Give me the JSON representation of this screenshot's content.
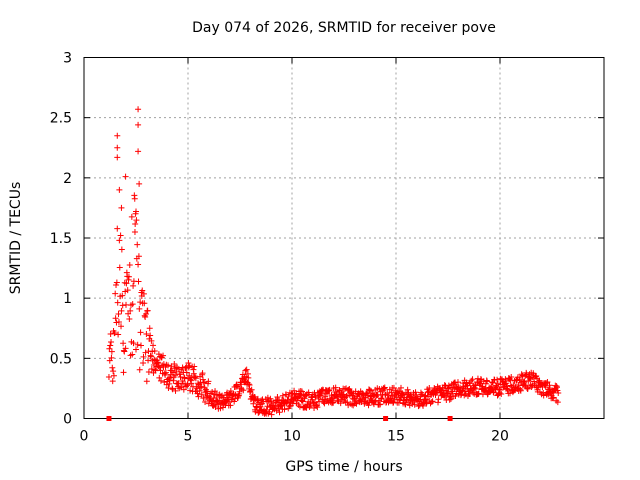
{
  "chart_data": {
    "type": "scatter",
    "title": "Day 074 of 2026, SRMTID for receiver pove",
    "xlabel": "GPS time / hours",
    "ylabel": "SRMTID / TECUs",
    "xlim": [
      0,
      25
    ],
    "ylim": [
      0,
      3
    ],
    "x_ticks": [
      0,
      5,
      10,
      15,
      20
    ],
    "y_ticks": [
      0,
      0.5,
      1,
      1.5,
      2,
      2.5,
      3
    ],
    "x_tick_labels": [
      "0",
      "5",
      "10",
      "15",
      "20"
    ],
    "y_tick_labels": [
      "0",
      "0.5",
      "1",
      "1.5",
      "2",
      "2.5",
      "3"
    ],
    "grid": true,
    "marker": "plus",
    "color": "#ff0000",
    "series": [
      {
        "name": "SRMTID",
        "description_trend": [
          [
            1.2,
            0.55
          ],
          [
            1.4,
            0.45
          ],
          [
            1.5,
            0.9
          ],
          [
            1.6,
            1.3
          ],
          [
            1.7,
            1.1
          ],
          [
            1.8,
            0.95
          ],
          [
            1.9,
            0.85
          ],
          [
            2.0,
            0.75
          ],
          [
            2.1,
            0.9
          ],
          [
            2.2,
            1.0
          ],
          [
            2.4,
            1.3
          ],
          [
            2.5,
            1.2
          ],
          [
            2.7,
            0.8
          ],
          [
            3.0,
            0.6
          ],
          [
            3.5,
            0.45
          ],
          [
            4.0,
            0.38
          ],
          [
            4.5,
            0.32
          ],
          [
            5.0,
            0.36
          ],
          [
            5.5,
            0.3
          ],
          [
            6.0,
            0.2
          ],
          [
            6.5,
            0.14
          ],
          [
            7.0,
            0.15
          ],
          [
            7.5,
            0.25
          ],
          [
            7.8,
            0.35
          ],
          [
            8.2,
            0.12
          ],
          [
            9.0,
            0.1
          ],
          [
            9.5,
            0.12
          ],
          [
            10.0,
            0.17
          ],
          [
            11.0,
            0.15
          ],
          [
            12.0,
            0.2
          ],
          [
            13.0,
            0.17
          ],
          [
            14.0,
            0.18
          ],
          [
            15.0,
            0.2
          ],
          [
            16.0,
            0.16
          ],
          [
            17.0,
            0.2
          ],
          [
            18.0,
            0.24
          ],
          [
            19.0,
            0.27
          ],
          [
            20.0,
            0.26
          ],
          [
            21.0,
            0.3
          ],
          [
            21.5,
            0.32
          ],
          [
            22.0,
            0.26
          ],
          [
            22.8,
            0.2
          ]
        ],
        "spikes": [
          [
            1.6,
            2.35
          ],
          [
            1.6,
            2.25
          ],
          [
            1.6,
            2.17
          ],
          [
            1.7,
            1.9
          ],
          [
            1.8,
            1.75
          ],
          [
            2.0,
            2.01
          ],
          [
            2.6,
            2.57
          ],
          [
            2.6,
            2.44
          ],
          [
            2.6,
            2.22
          ],
          [
            2.65,
            1.95
          ],
          [
            2.5,
            1.72
          ],
          [
            2.45,
            1.55
          ]
        ],
        "zero_points": [
          1.2,
          14.5,
          17.6
        ]
      }
    ]
  }
}
